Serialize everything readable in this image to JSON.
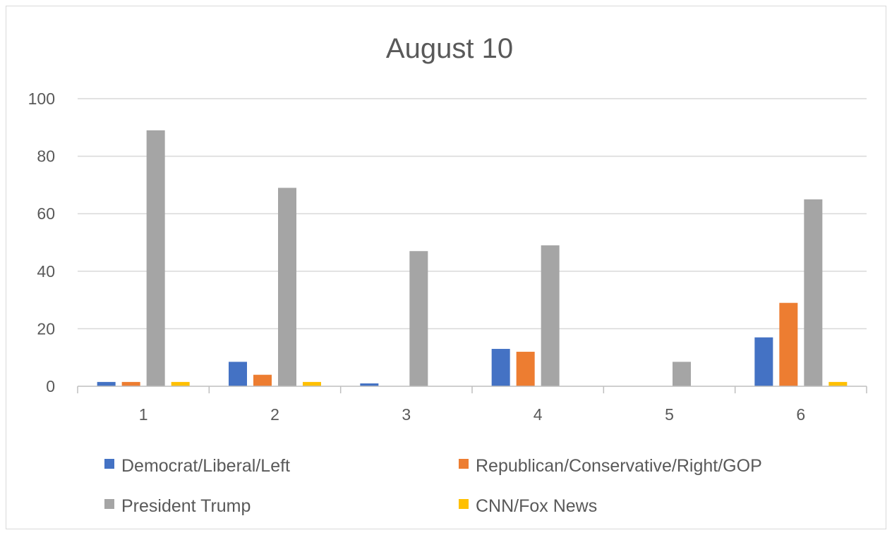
{
  "chart_data": {
    "type": "bar",
    "title": "August 10",
    "xlabel": "",
    "ylabel": "",
    "ylim": [
      0,
      100
    ],
    "yticks": [
      0,
      20,
      40,
      60,
      80,
      100
    ],
    "categories": [
      "1",
      "2",
      "3",
      "4",
      "5",
      "6"
    ],
    "grid": true,
    "legend_position": "bottom",
    "series": [
      {
        "name": "Democrat/Liberal/Left",
        "color": "#4472C4",
        "values": [
          1.5,
          8.5,
          1,
          13,
          0,
          17
        ]
      },
      {
        "name": "Republican/Conservative/Right/GOP",
        "color": "#ED7D31",
        "values": [
          1.5,
          4,
          0,
          12,
          0,
          29
        ]
      },
      {
        "name": "President Trump",
        "color": "#A5A5A5",
        "values": [
          89,
          69,
          47,
          49,
          8.5,
          65
        ]
      },
      {
        "name": "CNN/Fox News",
        "color": "#FFC000",
        "values": [
          1.5,
          1.5,
          0,
          0,
          0,
          1.5
        ]
      }
    ]
  }
}
